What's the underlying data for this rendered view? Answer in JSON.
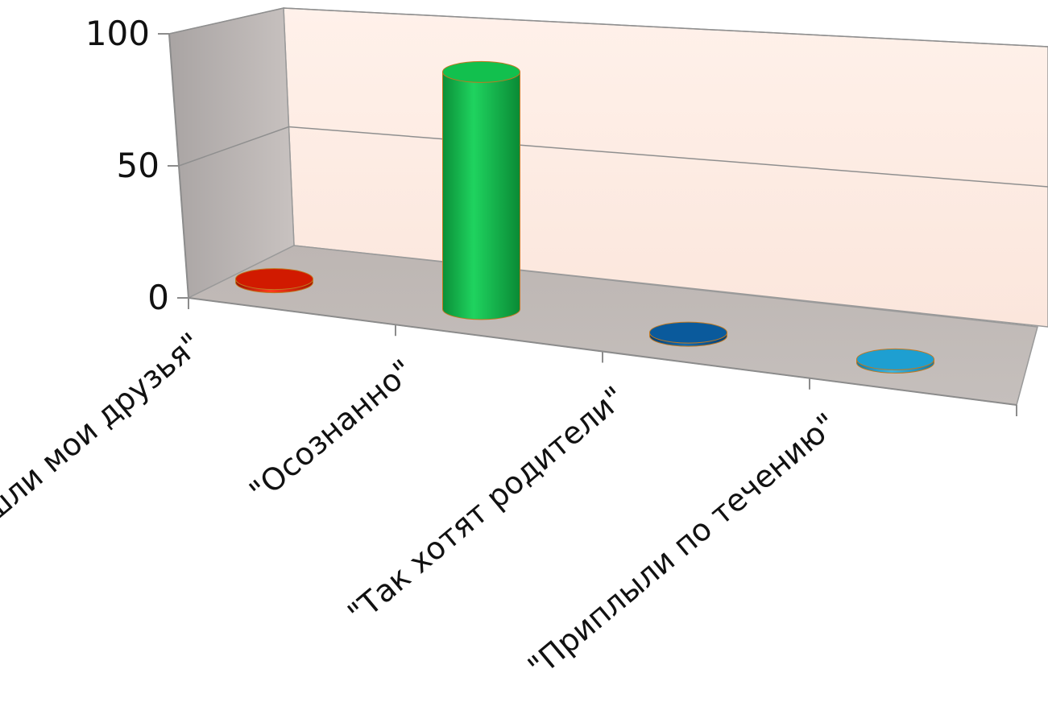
{
  "chart_data": {
    "type": "bar",
    "style": "3d-cylinder",
    "categories": [
      "\"Пришли мои друзья\"",
      "\"Осознанно\"",
      "\"Так хотят родители\"",
      "\"Приплыли по течению\""
    ],
    "values": [
      0,
      95,
      0,
      0
    ],
    "bar_colors": [
      "#d11a00",
      "#12c04e",
      "#0a5a9c",
      "#1e9fd1"
    ],
    "ylim": [
      0,
      100
    ],
    "yticks": [
      0,
      50,
      100
    ],
    "title": "",
    "xlabel": "",
    "ylabel": "",
    "grid": true,
    "legend": "none"
  }
}
